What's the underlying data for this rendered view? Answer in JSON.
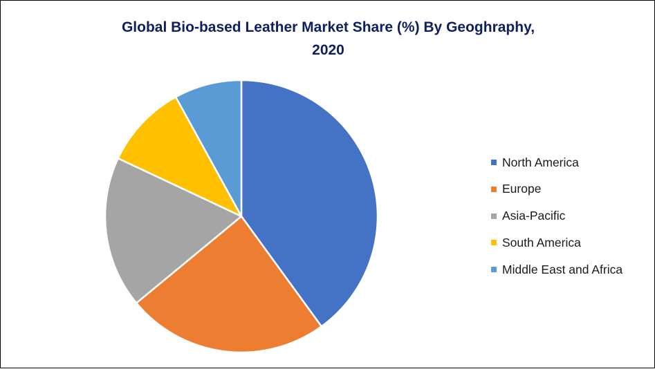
{
  "title": {
    "line1": "Global Bio-based Leather Market Share (%) By Geoghraphy,",
    "line2": "2020"
  },
  "legend": {
    "items": [
      {
        "label": "North America",
        "color": "#4472c4"
      },
      {
        "label": "Europe",
        "color": "#ed7d31"
      },
      {
        "label": "Asia-Pacific",
        "color": "#a5a5a5"
      },
      {
        "label": "South America",
        "color": "#ffc000"
      },
      {
        "label": "Middle East and Africa",
        "color": "#5b9bd5"
      }
    ]
  },
  "chart_data": {
    "type": "pie",
    "title": "Global Bio-based Leather Market Share (%) By Geoghraphy, 2020",
    "categories": [
      "North America",
      "Europe",
      "Asia-Pacific",
      "South America",
      "Middle East and Africa"
    ],
    "values": [
      40,
      24,
      18,
      10,
      8
    ],
    "colors": [
      "#4472c4",
      "#ed7d31",
      "#a5a5a5",
      "#ffc000",
      "#5b9bd5"
    ],
    "start_angle_deg": 0,
    "direction": "clockwise",
    "legend_position": "right",
    "data_labels": false,
    "unit": "%"
  }
}
